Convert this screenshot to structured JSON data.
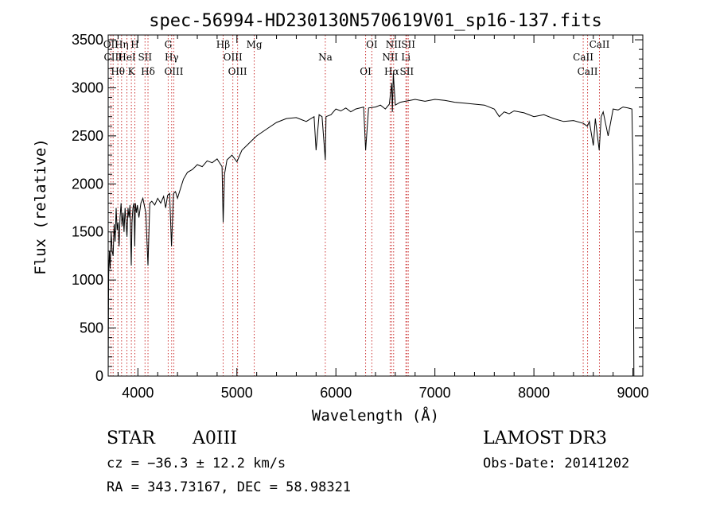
{
  "chart_data": {
    "type": "line",
    "title": "spec-56994-HD230130N570619V01_sp16-137.fits",
    "xlabel": "Wavelength (Å)",
    "ylabel": "Flux (relative)",
    "xlim": [
      3700,
      9100
    ],
    "ylim": [
      0,
      3550
    ],
    "xticks": [
      4000,
      5000,
      6000,
      7000,
      8000,
      9000
    ],
    "yticks": [
      0,
      500,
      1000,
      1500,
      2000,
      2500,
      3000,
      3500
    ],
    "grid": false,
    "line_color": "#000000",
    "marker_color": "#cc3333",
    "series": [
      {
        "x": [
          3700,
          3705,
          3712,
          3720,
          3730,
          3740,
          3750,
          3760,
          3770,
          3780,
          3790,
          3800,
          3810,
          3820,
          3830,
          3840,
          3850,
          3860,
          3870,
          3880,
          3890,
          3900,
          3910,
          3920,
          3933,
          3940,
          3950,
          3960,
          3968,
          3975,
          3985,
          3995,
          4010,
          4030,
          4050,
          4080,
          4102,
          4120,
          4140,
          4170,
          4200,
          4230,
          4260,
          4280,
          4300,
          4320,
          4340,
          4360,
          4380,
          4400,
          4430,
          4460,
          4500,
          4550,
          4600,
          4650,
          4700,
          4750,
          4800,
          4850,
          4861,
          4875,
          4900,
          4950,
          5000,
          5050,
          5100,
          5150,
          5200,
          5300,
          5400,
          5500,
          5600,
          5700,
          5780,
          5800,
          5830,
          5860,
          5893,
          5900,
          5950,
          6000,
          6050,
          6100,
          6150,
          6200,
          6280,
          6300,
          6330,
          6400,
          6450,
          6500,
          6540,
          6563,
          6570,
          6580,
          6600,
          6650,
          6700,
          6750,
          6800,
          6900,
          7000,
          7100,
          7200,
          7300,
          7400,
          7500,
          7600,
          7650,
          7700,
          7750,
          7800,
          7900,
          8000,
          8100,
          8200,
          8300,
          8400,
          8500,
          8540,
          8560,
          8600,
          8620,
          8660,
          8680,
          8700,
          8750,
          8800,
          8850,
          8900,
          8950,
          8990,
          9000,
          9010
        ],
        "y": [
          0,
          1050,
          1300,
          1120,
          1500,
          1300,
          1250,
          1580,
          1400,
          1750,
          1520,
          1600,
          1350,
          1650,
          1800,
          1560,
          1700,
          1500,
          1750,
          1600,
          1450,
          1750,
          1650,
          1780,
          1150,
          1600,
          1750,
          1800,
          1350,
          1800,
          1700,
          1780,
          1650,
          1800,
          1850,
          1700,
          1150,
          1800,
          1820,
          1780,
          1850,
          1800,
          1870,
          1750,
          1880,
          1900,
          1350,
          1900,
          1920,
          1850,
          1950,
          2050,
          2120,
          2150,
          2200,
          2180,
          2240,
          2220,
          2260,
          2180,
          1600,
          2100,
          2250,
          2300,
          2230,
          2350,
          2400,
          2450,
          2500,
          2570,
          2640,
          2680,
          2690,
          2650,
          2700,
          2350,
          2720,
          2700,
          2250,
          2700,
          2720,
          2780,
          2760,
          2790,
          2750,
          2780,
          2800,
          2350,
          2790,
          2800,
          2820,
          2780,
          2830,
          3050,
          2750,
          3150,
          2820,
          2850,
          2860,
          2870,
          2880,
          2860,
          2880,
          2870,
          2850,
          2840,
          2830,
          2820,
          2780,
          2700,
          2750,
          2730,
          2760,
          2740,
          2700,
          2720,
          2680,
          2650,
          2660,
          2630,
          2600,
          2650,
          2400,
          2680,
          2350,
          2700,
          2750,
          2500,
          2780,
          2770,
          2800,
          2790,
          2780,
          2200,
          0
        ]
      }
    ],
    "lines": [
      {
        "x": 3727,
        "label": "OII"
      },
      {
        "x": 3750,
        "label": "CIII"
      },
      {
        "x": 3798,
        "label": "Hθ"
      },
      {
        "x": 3835,
        "label": "Hη"
      },
      {
        "x": 3889,
        "label": "HeI"
      },
      {
        "x": 3934,
        "label": "K"
      },
      {
        "x": 3969,
        "label": "H"
      },
      {
        "x": 4072,
        "label": "SII"
      },
      {
        "x": 4102,
        "label": "Hδ"
      },
      {
        "x": 4306,
        "label": "G"
      },
      {
        "x": 4341,
        "label": "Hγ"
      },
      {
        "x": 4363,
        "label": "OIII"
      },
      {
        "x": 4861,
        "label": "Hβ"
      },
      {
        "x": 4959,
        "label": "OIII"
      },
      {
        "x": 5007,
        "label": "OIII"
      },
      {
        "x": 5175,
        "label": "Mg"
      },
      {
        "x": 5893,
        "label": "Na"
      },
      {
        "x": 6300,
        "label": "OI"
      },
      {
        "x": 6363,
        "label": "OI"
      },
      {
        "x": 6548,
        "label": "NII"
      },
      {
        "x": 6563,
        "label": "Hα"
      },
      {
        "x": 6583,
        "label": "NII"
      },
      {
        "x": 6707,
        "label": "Li"
      },
      {
        "x": 6716,
        "label": "SII"
      },
      {
        "x": 6731,
        "label": "SII"
      },
      {
        "x": 8498,
        "label": "CaII"
      },
      {
        "x": 8542,
        "label": "CaII"
      },
      {
        "x": 8662,
        "label": "CaII"
      }
    ]
  },
  "info": {
    "class": "STAR",
    "subclass": "A0III",
    "survey": "LAMOST DR3",
    "redshift": "cz = −36.3 ± 12.2 km/s",
    "obsdate": "Obs-Date: 20141202",
    "coords": "RA = 343.73167, DEC =  58.98321"
  }
}
